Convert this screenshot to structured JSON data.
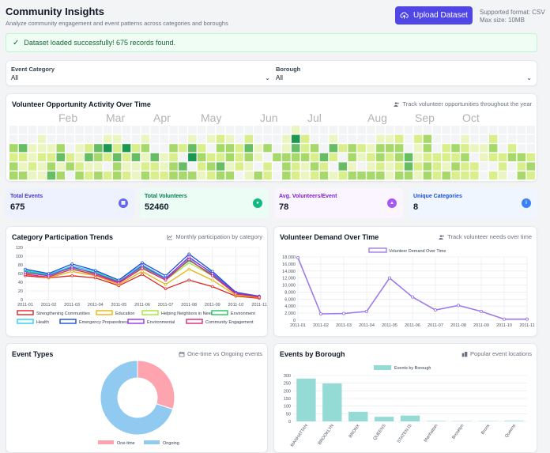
{
  "header": {
    "title": "Community Insights",
    "subtitle": "Analyze community engagement and event patterns across categories and boroughs",
    "upload_label": "Upload Dataset",
    "format_note": "Supported format: CSV",
    "size_note": "Max size: 10MB"
  },
  "alert": {
    "message": "Dataset loaded successfully! 675 records found."
  },
  "filters": {
    "category_label": "Event Category",
    "category_value": "All",
    "borough_label": "Borough",
    "borough_value": "All"
  },
  "activity": {
    "title": "Volunteer Opportunity Activity Over Time",
    "note": "Track volunteer opportunities throughout the year",
    "months": [
      "Feb",
      "Mar",
      "Apr",
      "May",
      "Jun",
      "Jul",
      "Aug",
      "Sep",
      "Oct"
    ],
    "palette": [
      "#f3f4f6",
      "#ebf5c2",
      "#d9ef8b",
      "#a6d96a",
      "#66bd63",
      "#1a9850"
    ],
    "levels": [
      [
        0,
        0,
        0,
        0,
        0,
        0,
        0,
        0,
        0,
        0,
        0,
        0,
        0,
        0,
        0,
        0,
        0,
        0,
        0,
        0,
        0,
        0,
        0,
        0,
        0,
        0,
        0,
        0,
        0,
        0,
        1,
        0,
        0,
        0,
        0,
        0,
        0,
        0,
        0,
        0,
        0,
        0,
        0,
        0,
        0,
        0,
        0,
        0,
        0,
        0,
        0,
        0,
        0,
        0,
        0,
        0
      ],
      [
        0,
        0,
        0,
        1,
        0,
        0,
        0,
        0,
        0,
        0,
        1,
        1,
        0,
        0,
        1,
        0,
        0,
        0,
        0,
        1,
        0,
        1,
        2,
        1,
        0,
        2,
        0,
        0,
        0,
        1,
        5,
        2,
        0,
        0,
        1,
        0,
        0,
        0,
        0,
        1,
        1,
        2,
        0,
        2,
        3,
        0,
        0,
        0,
        1,
        0,
        0,
        2,
        0,
        0,
        0,
        0
      ],
      [
        3,
        4,
        1,
        1,
        1,
        3,
        0,
        1,
        2,
        4,
        5,
        2,
        5,
        2,
        3,
        0,
        0,
        3,
        2,
        4,
        2,
        0,
        3,
        3,
        2,
        4,
        1,
        3,
        0,
        1,
        4,
        2,
        3,
        0,
        4,
        2,
        3,
        2,
        1,
        3,
        3,
        3,
        0,
        1,
        3,
        0,
        2,
        3,
        2,
        1,
        1,
        3,
        0,
        2,
        0,
        0
      ],
      [
        2,
        2,
        1,
        2,
        2,
        4,
        2,
        1,
        4,
        3,
        2,
        4,
        2,
        4,
        1,
        4,
        1,
        2,
        0,
        5,
        3,
        2,
        2,
        3,
        2,
        3,
        1,
        0,
        3,
        3,
        3,
        3,
        2,
        4,
        2,
        0,
        3,
        1,
        2,
        3,
        2,
        3,
        4,
        1,
        2,
        2,
        2,
        2,
        3,
        0,
        1,
        2,
        2,
        3,
        3,
        2
      ],
      [
        3,
        1,
        2,
        1,
        3,
        1,
        3,
        2,
        1,
        1,
        0,
        3,
        1,
        1,
        2,
        2,
        1,
        3,
        4,
        0,
        2,
        3,
        4,
        1,
        2,
        1,
        0,
        2,
        0,
        3,
        2,
        1,
        3,
        2,
        0,
        4,
        1,
        0,
        1,
        2,
        1,
        2,
        4,
        2,
        3,
        2,
        1,
        3,
        2,
        2,
        0,
        0,
        2,
        0,
        2,
        3
      ],
      [
        3,
        3,
        1,
        1,
        4,
        3,
        0,
        3,
        2,
        3,
        2,
        3,
        2,
        1,
        3,
        2,
        2,
        3,
        3,
        3,
        1,
        2,
        3,
        3,
        0,
        1,
        3,
        2,
        0,
        3,
        2,
        1,
        2,
        3,
        1,
        2,
        3,
        3,
        3,
        3,
        1,
        3,
        3,
        1,
        3,
        2,
        3,
        2,
        2,
        2,
        0,
        2,
        1,
        0,
        3,
        2
      ]
    ]
  },
  "stats": [
    {
      "label": "Total Events",
      "value": "675",
      "icon": "calendar-icon",
      "bg": "#eef2ff",
      "fg": "#4338ca",
      "icon_bg": "#6366f1"
    },
    {
      "label": "Total Volunteers",
      "value": "52460",
      "icon": "users-icon",
      "bg": "#ecfdf5",
      "fg": "#047857",
      "icon_bg": "#10b981"
    },
    {
      "label": "Avg. Volunteers/Event",
      "value": "78",
      "icon": "graduation-cap-icon",
      "bg": "#faf5ff",
      "fg": "#7e22ce",
      "icon_bg": "#a855f7"
    },
    {
      "label": "Unique Categories",
      "value": "8",
      "icon": "info-icon",
      "bg": "#eff6ff",
      "fg": "#1d4ed8",
      "icon_bg": "#3b82f6"
    }
  ],
  "category_trends": {
    "title": "Category Participation Trends",
    "note": "Monthly participation by category"
  },
  "volunteer_demand": {
    "title": "Volunteer Demand Over Time",
    "note": "Track volunteer needs over time"
  },
  "event_types": {
    "title": "Event Types",
    "note": "One-time vs Ongoing events"
  },
  "borough_events": {
    "title": "Events by Borough",
    "note": "Popular event locations"
  },
  "chart_data": [
    {
      "type": "line",
      "x": [
        "2011-01",
        "2011-02",
        "2011-03",
        "2011-04",
        "2011-05",
        "2011-06",
        "2011-07",
        "2011-08",
        "2011-09",
        "2011-10",
        "2011-11"
      ],
      "ylim": [
        0,
        120
      ],
      "yticks": [
        0,
        20,
        40,
        60,
        80,
        100,
        120
      ],
      "series": [
        {
          "name": "Strengthening Communities",
          "color": "#dc2626",
          "values": [
            55,
            50,
            55,
            50,
            32,
            58,
            25,
            45,
            30,
            8,
            3
          ]
        },
        {
          "name": "Education",
          "color": "#eab308",
          "values": [
            60,
            50,
            65,
            55,
            35,
            65,
            35,
            70,
            45,
            10,
            5
          ]
        },
        {
          "name": "Helping Neighbors in Need",
          "color": "#a3e635",
          "values": [
            62,
            55,
            70,
            60,
            40,
            72,
            45,
            85,
            55,
            12,
            6
          ]
        },
        {
          "name": "Environment",
          "color": "#22c55e",
          "values": [
            65,
            57,
            73,
            62,
            42,
            75,
            48,
            90,
            58,
            14,
            7
          ]
        },
        {
          "name": "Health",
          "color": "#22d3ee",
          "values": [
            68,
            58,
            77,
            65,
            45,
            80,
            50,
            95,
            62,
            15,
            7
          ]
        },
        {
          "name": "Emergency Preparedness",
          "color": "#1d4ed8",
          "values": [
            70,
            60,
            82,
            67,
            45,
            85,
            55,
            105,
            65,
            17,
            8
          ]
        },
        {
          "name": "Environmental",
          "color": "#9333ea",
          "values": [
            62,
            55,
            75,
            60,
            40,
            78,
            48,
            98,
            60,
            15,
            7
          ]
        },
        {
          "name": "Community Engagement",
          "color": "#db2777",
          "values": [
            58,
            52,
            70,
            57,
            38,
            72,
            45,
            92,
            55,
            13,
            6
          ]
        }
      ]
    },
    {
      "type": "line",
      "x": [
        "2011-01",
        "2011-02",
        "2011-03",
        "2011-04",
        "2011-05",
        "2011-06",
        "2011-07",
        "2011-08",
        "2011-09",
        "2011-10",
        "2011-11"
      ],
      "ylim": [
        0,
        18000
      ],
      "yticks": [
        0,
        2000,
        4000,
        6000,
        8000,
        10000,
        12000,
        14000,
        16000,
        18000
      ],
      "ytick_labels": [
        "0",
        "2,000",
        "4,000",
        "6,000",
        "8,000",
        "10,000",
        "12,000",
        "14,000",
        "16,000",
        "18,000"
      ],
      "series": [
        {
          "name": "Volunteer Demand Over Time",
          "color": "#9f7aea",
          "values": [
            17800,
            1800,
            1900,
            2500,
            12000,
            6600,
            2900,
            4200,
            2500,
            300,
            300
          ]
        }
      ]
    },
    {
      "type": "pie",
      "labels": [
        "One-time",
        "Ongoing"
      ],
      "values": [
        30,
        70
      ],
      "colors": [
        "#fda4af",
        "#90caf0"
      ]
    },
    {
      "type": "bar",
      "categories": [
        "MANHATTAN",
        "BROOKLYN",
        "BRONX",
        "QUEENS",
        "STATEN IS",
        "Manhattan",
        "Brooklyn",
        "Bronx",
        "Queens"
      ],
      "values": [
        280,
        248,
        63,
        30,
        38,
        3,
        2,
        2,
        4
      ],
      "ylim": [
        0,
        300
      ],
      "yticks": [
        0,
        50,
        100,
        150,
        200,
        250,
        300
      ],
      "series_name": "Events by Borough",
      "color": "#94dbd6"
    }
  ]
}
